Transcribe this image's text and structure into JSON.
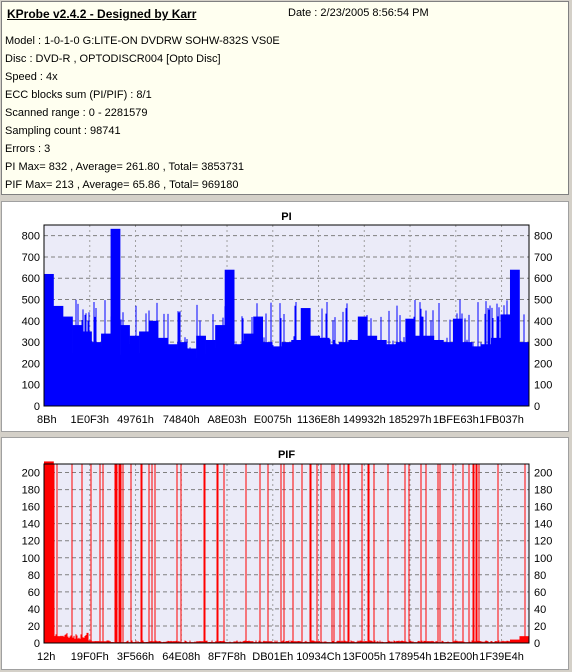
{
  "info": {
    "title": "KProbe v2.4.2 - Designed by Karr",
    "date": "Date : 2/23/2005 8:56:54 PM",
    "lines": [
      "Model : 1-0-1-0 G:LITE-ON DVDRW SOHW-832S  VS0E",
      "Disc : DVD-R , OPTODISCR004 [Opto Disc]",
      "Speed : 4x",
      "ECC blocks sum (PI/PIF) : 8/1",
      "Scanned range : 0 - 2281579",
      "Sampling count : 98741",
      "Errors : 3",
      "PI Max= 832 , Average= 261.80 , Total= 3853731",
      "PIF Max= 213 , Average= 65.86 , Total= 969180"
    ]
  },
  "chart_data": [
    {
      "type": "bar",
      "title": "PI",
      "color": "#0000ff",
      "ylim": [
        0,
        850
      ],
      "yticks": [
        0,
        100,
        200,
        300,
        400,
        500,
        600,
        700,
        800
      ],
      "xticklabels": [
        "8Bh",
        "1E0F3h",
        "49761h",
        "74840h",
        "A8E03h",
        "E0075h",
        "1136E8h",
        "149932h",
        "185297h",
        "1BFE63h",
        "1FB037h"
      ],
      "grid": true,
      "base_value": 230,
      "typical_peak": 400,
      "max_value": 832,
      "series": [
        {
          "values": [
            620,
            470,
            420,
            380,
            350,
            300,
            340,
            832,
            380,
            330,
            350,
            400,
            320,
            290,
            300,
            270,
            330,
            310,
            380,
            640,
            290,
            340,
            420,
            300,
            280,
            300,
            310,
            460,
            330,
            320,
            290,
            300,
            310,
            420,
            330,
            310,
            290,
            300,
            410,
            330,
            330,
            310,
            300,
            410,
            300,
            280,
            290,
            320,
            430,
            640,
            300
          ]
        }
      ]
    },
    {
      "type": "bar",
      "title": "PIF",
      "color": "#ff0000",
      "ylim": [
        0,
        210
      ],
      "yticks": [
        0,
        20,
        40,
        60,
        80,
        100,
        120,
        140,
        160,
        180,
        200
      ],
      "xticklabels": [
        "12h",
        "19F0Fh",
        "3F566h",
        "64E08h",
        "8F7F8h",
        "DB01Eh",
        "10934Ch",
        "13F005h",
        "178954h",
        "1B2E00h",
        "1F39E4h"
      ],
      "grid": true,
      "max_value": 213,
      "series": [
        {
          "values": [
            213,
            8,
            6,
            5,
            3,
            2,
            2,
            1,
            1,
            1,
            1,
            2,
            1,
            2,
            1,
            1,
            2,
            1,
            2,
            1,
            1,
            2,
            1,
            2,
            1,
            1,
            2,
            1,
            2,
            1,
            1,
            2,
            1,
            2,
            1,
            1,
            1,
            2,
            1,
            1,
            2,
            1,
            1,
            2,
            1,
            2,
            1,
            1,
            2,
            4,
            8
          ]
        }
      ]
    }
  ]
}
